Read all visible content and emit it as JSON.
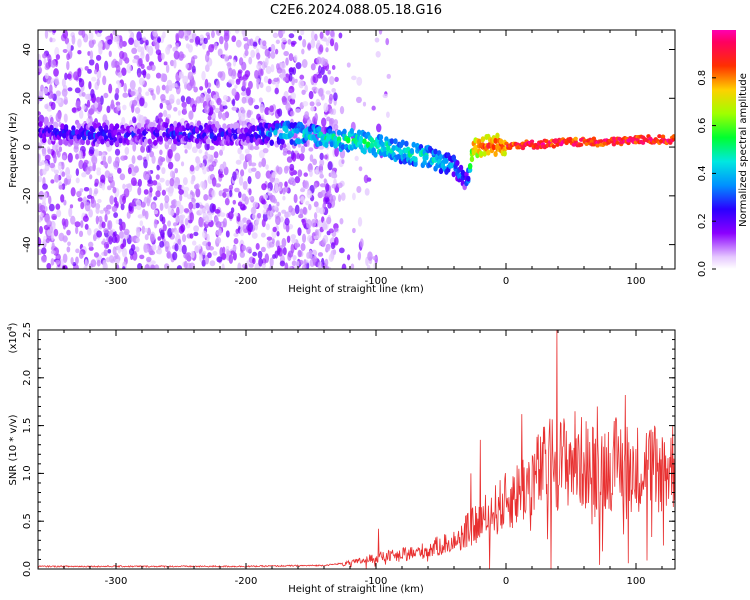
{
  "title": "C2E6.2024.088.05.18.G16",
  "chart_data": [
    {
      "type": "heatmap",
      "title": "",
      "xlabel": "Height of straight line (km)",
      "ylabel": "Frequency (Hz)",
      "xlim": [
        -360,
        130
      ],
      "ylim": [
        -50,
        48
      ],
      "x_ticks": [
        -300,
        -200,
        -100,
        0,
        100
      ],
      "y_ticks": [
        -40,
        -20,
        0,
        20,
        40
      ],
      "colorbar": {
        "label": "Normalized spectral amplitude",
        "range": [
          0.0,
          1.0
        ],
        "ticks": [
          "0.0",
          "0.2",
          "0.4",
          "0.6",
          "0.8"
        ],
        "colormap": "rainbow",
        "stops": [
          "#ffffff",
          "#8b00ff",
          "#2200ff",
          "#00c8ff",
          "#00ff00",
          "#ffff00",
          "#ff0000",
          "#ff00aa"
        ]
      },
      "signal_track": {
        "x": [
          -350,
          -320,
          -280,
          -240,
          -200,
          -170,
          -140,
          -110,
          -80,
          -60,
          -40,
          -30,
          -25,
          -10,
          0,
          20,
          50,
          80,
          100,
          128
        ],
        "y": [
          6,
          5,
          5,
          6,
          5,
          6,
          4,
          2,
          -2,
          -4,
          -8,
          -14,
          0,
          1,
          1,
          1,
          2,
          2,
          3,
          3
        ],
        "amplitude": [
          0.25,
          0.3,
          0.25,
          0.3,
          0.25,
          0.45,
          0.5,
          0.55,
          0.5,
          0.5,
          0.4,
          0.3,
          0.85,
          0.9,
          0.9,
          0.95,
          0.95,
          0.95,
          0.95,
          0.95
        ]
      },
      "noise_cutoff_x": -130
    },
    {
      "type": "line",
      "title": "",
      "xlabel": "Height of straight line (km)",
      "ylabel": "SNR (10 * v/v)",
      "y_multiplier": "(x10",
      "y_exponent": "4",
      "y_multiplier_close": ")",
      "xlim": [
        -360,
        130
      ],
      "ylim": [
        0.0,
        2.5
      ],
      "x_ticks": [
        -300,
        -200,
        -100,
        0,
        100
      ],
      "y_ticks": [
        "0.0",
        "0.5",
        "1.0",
        "1.5",
        "2.0",
        "2.5"
      ],
      "series_color": "#e83030",
      "envelope": {
        "x": [
          -360,
          -200,
          -140,
          -120,
          -100,
          -80,
          -60,
          -40,
          -30,
          -20,
          -10,
          0,
          10,
          20,
          30,
          38,
          40,
          50,
          60,
          70,
          80,
          90,
          100,
          110,
          120,
          130
        ],
        "y": [
          0.02,
          0.02,
          0.03,
          0.06,
          0.12,
          0.15,
          0.2,
          0.3,
          0.4,
          0.5,
          0.6,
          0.7,
          0.8,
          0.95,
          1.05,
          1.15,
          1.1,
          1.15,
          1.1,
          1.05,
          1.1,
          1.1,
          1.05,
          1.1,
          1.05,
          1.1
        ]
      },
      "peaks": [
        {
          "x": 39,
          "y": 2.5
        },
        {
          "x": 92,
          "y": 1.82
        },
        {
          "x": 53,
          "y": 1.65
        },
        {
          "x": 12,
          "y": 1.62
        },
        {
          "x": -20,
          "y": 1.35
        },
        {
          "x": -98,
          "y": 0.42
        },
        {
          "x": -27,
          "y": 1.0
        },
        {
          "x": 70,
          "y": 1.7
        },
        {
          "x": 110,
          "y": 1.35
        }
      ]
    }
  ]
}
